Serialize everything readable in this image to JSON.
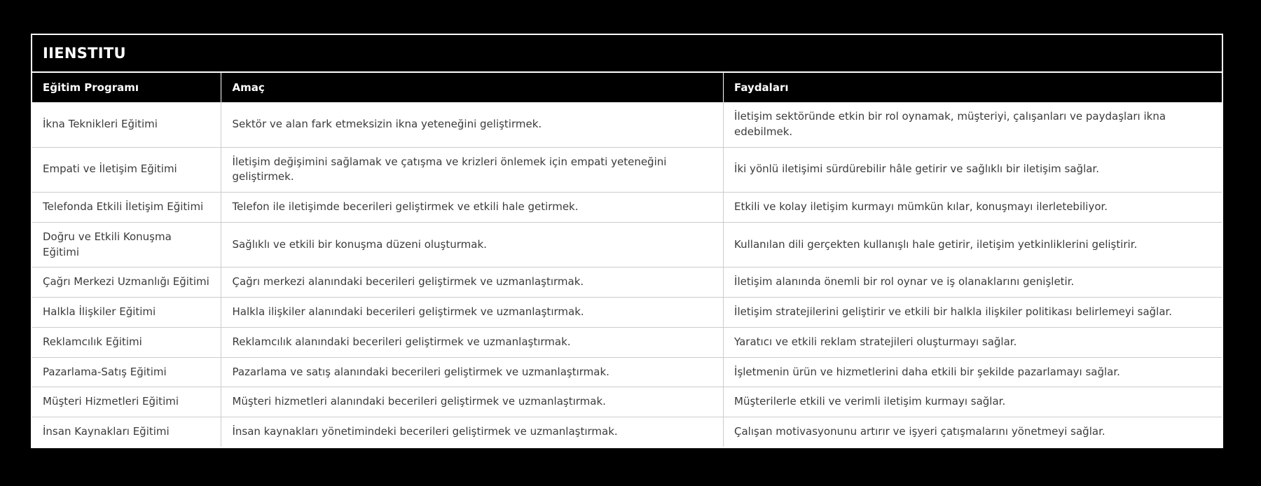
{
  "page": {
    "background_color": "#000000"
  },
  "table": {
    "title": "IIENSTITU",
    "columns": [
      "Eğitim Programı",
      "Amaç",
      "Faydaları"
    ],
    "rows": [
      {
        "program": "İkna Teknikleri Eğitimi",
        "amac": "Sektör ve alan fark etmeksizin ikna yeteneğini geliştirmek.",
        "faydalari": "İletişim sektöründe etkin bir rol oynamak, müşteriyi, çalışanları ve paydaşları ikna edebilmek."
      },
      {
        "program": "Empati ve İletişim Eğitimi",
        "amac": "İletişim değişimini sağlamak ve çatışma ve krizleri önlemek için empati yeteneğini geliştirmek.",
        "faydalari": "İki yönlü iletişimi sürdürebilir hâle getirir ve sağlıklı bir iletişim sağlar."
      },
      {
        "program": "Telefonda Etkili İletişim Eğitimi",
        "amac": "Telefon ile iletişimde becerileri geliştirmek ve etkili hale getirmek.",
        "faydalari": "Etkili ve kolay iletişim kurmayı mümkün kılar, konuşmayı ilerletebiliyor."
      },
      {
        "program": "Doğru ve Etkili Konuşma Eğitimi",
        "amac": "Sağlıklı ve etkili bir konuşma düzeni oluşturmak.",
        "faydalari": "Kullanılan dili gerçekten kullanışlı hale getirir, iletişim yetkinliklerini geliştirir."
      },
      {
        "program": "Çağrı Merkezi Uzmanlığı Eğitimi",
        "amac": "Çağrı merkezi alanındaki becerileri geliştirmek ve uzmanlaştırmak.",
        "faydalari": "İletişim alanında önemli bir rol oynar ve iş olanaklarını genişletir."
      },
      {
        "program": "Halkla İlişkiler Eğitimi",
        "amac": "Halkla ilişkiler alanındaki becerileri geliştirmek ve uzmanlaştırmak.",
        "faydalari": "İletişim stratejilerini geliştirir ve etkili bir halkla ilişkiler politikası belirlemeyi sağlar."
      },
      {
        "program": "Reklamcılık Eğitimi",
        "amac": "Reklamcılık alanındaki becerileri geliştirmek ve uzmanlaştırmak.",
        "faydalari": "Yaratıcı ve etkili reklam stratejileri oluşturmayı sağlar."
      },
      {
        "program": "Pazarlama-Satış Eğitimi",
        "amac": "Pazarlama ve satış alanındaki becerileri geliştirmek ve uzmanlaştırmak.",
        "faydalari": "İşletmenin ürün ve hizmetlerini daha etkili bir şekilde pazarlamayı sağlar."
      },
      {
        "program": "Müşteri Hizmetleri Eğitimi",
        "amac": "Müşteri hizmetleri alanındaki becerileri geliştirmek ve uzmanlaştırmak.",
        "faydalari": "Müşterilerle etkili ve verimli iletişim kurmayı sağlar."
      },
      {
        "program": "İnsan Kaynakları Eğitimi",
        "amac": "İnsan kaynakları yönetimindeki becerileri geliştirmek ve uzmanlaştırmak.",
        "faydalari": "Çalışan motivasyonunu artırır ve işyeri çatışmalarını yönetmeyi sağlar."
      }
    ],
    "colors": {
      "outer_border": "#ffffff",
      "title_bar_bg": "#000000",
      "title_text": "#ffffff",
      "header_bg": "#000000",
      "header_text": "#ffffff",
      "body_bg": "#ffffff",
      "body_text": "#3b3b3b",
      "grid_line": "#cccccc"
    }
  }
}
